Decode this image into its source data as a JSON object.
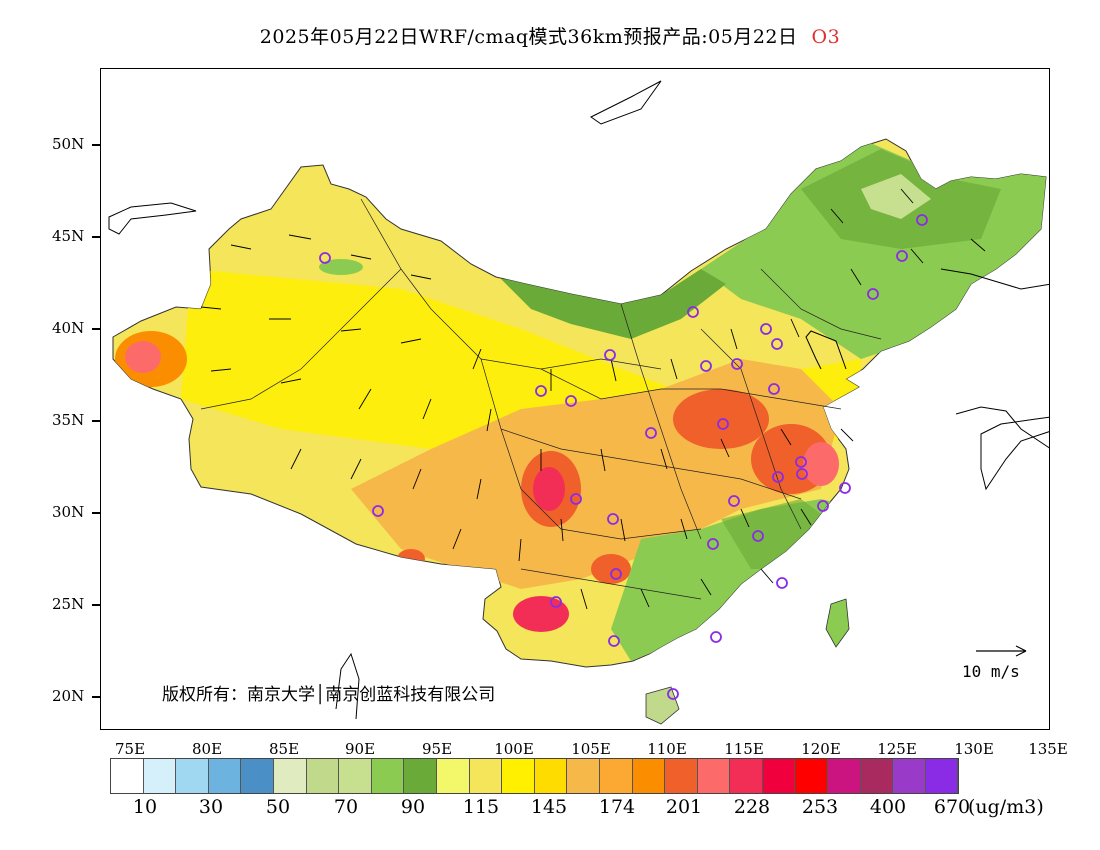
{
  "title": {
    "main": "2025年05月22日WRF/cmaq模式36km预报产品:05月22日",
    "species": "O3"
  },
  "axes": {
    "lat_labels": [
      "50N",
      "45N",
      "40N",
      "35N",
      "30N",
      "25N",
      "20N"
    ],
    "lon_labels": [
      "75E",
      "80E",
      "85E",
      "90E",
      "95E",
      "100E",
      "105E",
      "110E",
      "115E",
      "120E",
      "125E",
      "130E",
      "135E"
    ]
  },
  "legend": {
    "labels": [
      "10",
      "30",
      "50",
      "70",
      "90",
      "115",
      "145",
      "174",
      "201",
      "228",
      "253",
      "400",
      "670"
    ],
    "unit": "(ug/m3)",
    "colors": [
      "#ffffff",
      "#d5effb",
      "#a0d8f2",
      "#6cb3e0",
      "#4a8fc6",
      "#e0ebc0",
      "#c0d98a",
      "#c6e090",
      "#8ccb52",
      "#6aaa38",
      "#f2f86a",
      "#f4e55a",
      "#fff000",
      "#ffdc00",
      "#f7b84a",
      "#fba932",
      "#fa8e00",
      "#f0602a",
      "#fd6a6a",
      "#f32e56",
      "#f0003c",
      "#ff0000",
      "#cc1481",
      "#a82a5e",
      "#9a3ac8",
      "#8a2ce6"
    ]
  },
  "annotations": {
    "copyright": "版权所有：南京大学│南京创蓝科技有限公司",
    "wind_reference": "10 m/s"
  },
  "colors": {
    "land_green": "#8ccb52",
    "land_yellow": "#f4e55a",
    "high_orange": "#f7b84a",
    "high_red": "#f32e56"
  }
}
